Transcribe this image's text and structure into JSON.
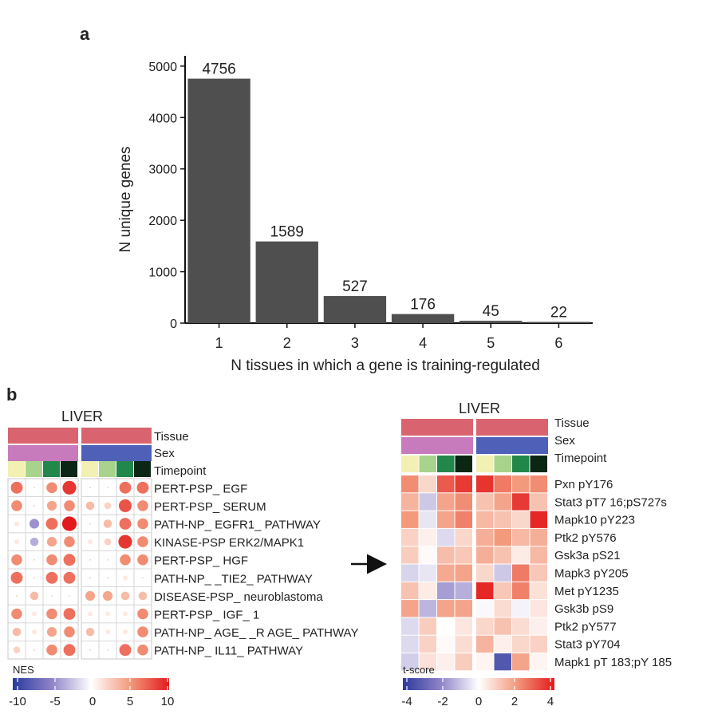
{
  "panel_a": {
    "label": "a",
    "chart_data": {
      "type": "bar",
      "categories": [
        "1",
        "2",
        "3",
        "4",
        "5",
        "6"
      ],
      "values": [
        4756,
        1589,
        527,
        176,
        45,
        22
      ],
      "xlabel": "N tissues in which a gene is training-regulated",
      "ylabel": "N unique genes",
      "yticks": [
        0,
        1000,
        2000,
        3000,
        4000,
        5000
      ],
      "ylim": [
        0,
        5200
      ],
      "bar_color": "#4f4f4f"
    }
  },
  "panel_b": {
    "label": "b",
    "annotation_labels": [
      "Tissue",
      "Sex",
      "Timepoint"
    ],
    "colors": {
      "tissue": "#d9646f",
      "sex_left": "#c77bbd",
      "sex_right": "#4f60b8",
      "timepoints": [
        "#f2f0b3",
        "#a8d38c",
        "#22874a",
        "#0b2615"
      ]
    },
    "left": {
      "title": "LIVER",
      "chart_data": {
        "type": "heatmap",
        "rows": [
          "PERT-PSP_ EGF",
          "PERT-PSP_ SERUM",
          "PATH-NP_ EGFR1_ PATHWAY",
          "KINASE-PSP ERK2/MAPK1",
          "PERT-PSP_ HGF",
          "PATH-NP_ _TIE2_ PATHWAY",
          "DISEASE-PSP_ neuroblastoma",
          "PERT-PSP_ IGF_ 1",
          "PATH-NP_ AGE_ _R AGE_ PATHWAY",
          "PATH-NP_ IL11_ PATHWAY"
        ],
        "values": [
          [
            6,
            0,
            5,
            8,
            0,
            0,
            6,
            6
          ],
          [
            5,
            0,
            4,
            5,
            3,
            2,
            7,
            5
          ],
          [
            1,
            -4,
            6,
            9,
            0,
            3,
            6,
            5
          ],
          [
            1,
            -3,
            4,
            5,
            1,
            2,
            8,
            5
          ],
          [
            5,
            0,
            5,
            6,
            0,
            0,
            5,
            5
          ],
          [
            6,
            0,
            6,
            6,
            0,
            0,
            1,
            0
          ],
          [
            0,
            3,
            0,
            0,
            4,
            4,
            3,
            3
          ],
          [
            5,
            1,
            5,
            6,
            1,
            1,
            1,
            5
          ],
          [
            3,
            1,
            4,
            5,
            3,
            1,
            1,
            5
          ],
          [
            2,
            0,
            5,
            6,
            0,
            0,
            6,
            5
          ]
        ],
        "legend_title": "NES",
        "legend_ticks": [
          "-10",
          "-5",
          "0",
          "5",
          "10"
        ],
        "range": [
          -10,
          10
        ]
      }
    },
    "right": {
      "title": "LIVER",
      "chart_data": {
        "type": "heatmap",
        "rows": [
          "Pxn pY176",
          "Stat3 pT7 16;pS727s",
          "Mapk10 pY223",
          "Ptk2 pY576",
          "Gsk3a pS21",
          "Mapk3 pY205",
          "Met pY1235",
          "Gsk3b pS9",
          "Ptk2 pY577",
          "Stat3 pY704",
          "Mapk1 pT 183;pY 185"
        ],
        "values": [
          [
            2.2,
            0.8,
            3.0,
            3.5,
            3.6,
            2.5,
            2.0,
            2.2
          ],
          [
            1.5,
            -0.9,
            1.8,
            2.2,
            1.2,
            1.8,
            3.5,
            1.2
          ],
          [
            2.0,
            -0.4,
            1.8,
            2.4,
            1.4,
            1.2,
            0.8,
            3.8
          ],
          [
            0.9,
            0.3,
            -0.6,
            0.8,
            1.6,
            2.0,
            1.4,
            1.6
          ],
          [
            1.0,
            0.1,
            1.3,
            1.1,
            1.6,
            1.2,
            0.4,
            1.4
          ],
          [
            -0.7,
            -0.4,
            1.7,
            1.8,
            0.8,
            -0.9,
            2.5,
            1.1
          ],
          [
            1.2,
            0.4,
            -1.6,
            -1.3,
            3.8,
            1.1,
            2.4,
            0.6
          ],
          [
            1.8,
            -1.2,
            1.8,
            1.8,
            -0.1,
            0.7,
            -0.2,
            0.5
          ],
          [
            -0.6,
            1.0,
            0.0,
            0.5,
            0.8,
            1.2,
            0.7,
            0.3
          ],
          [
            -0.6,
            0.9,
            0.1,
            0.7,
            1.5,
            0.3,
            0.8,
            0.9
          ],
          [
            -0.8,
            0.6,
            0.3,
            1.0,
            0.2,
            -3.2,
            1.8,
            0.2
          ]
        ],
        "legend_title": "t-score",
        "legend_ticks": [
          "-4",
          "-2",
          "0",
          "2",
          "4"
        ],
        "range": [
          -4,
          4
        ]
      }
    }
  }
}
